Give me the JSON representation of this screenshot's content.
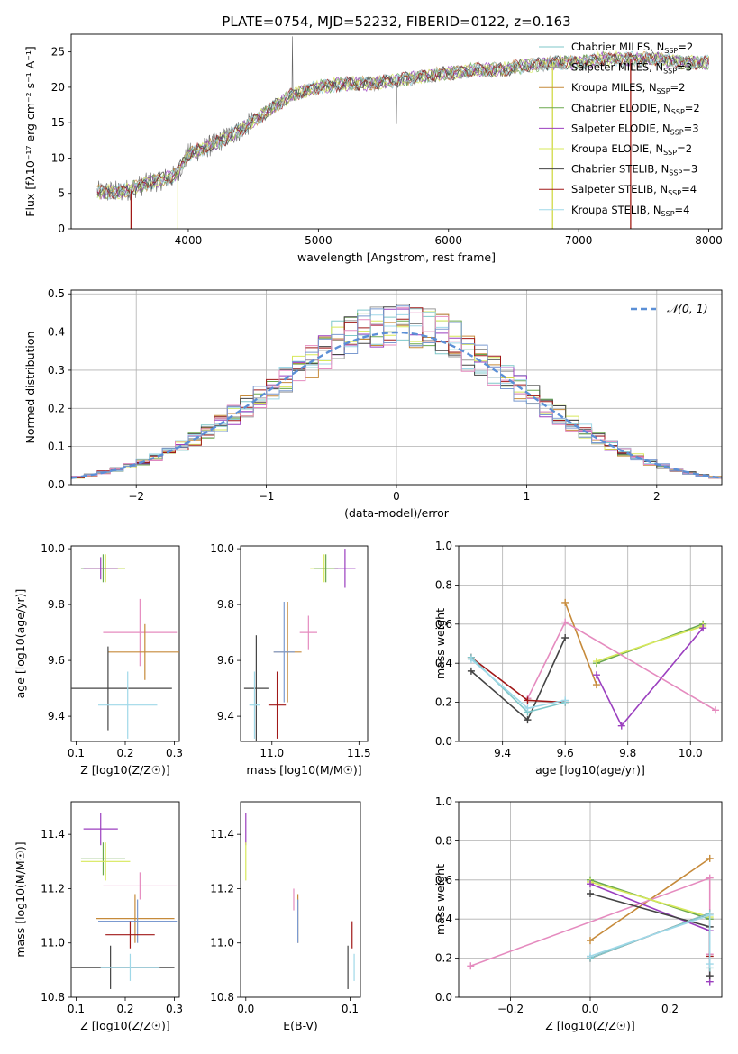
{
  "figure_title": "PLATE=0754, MJD=52232, FIBERID=0122, z=0.163",
  "legend_colors": [
    "#7fc7c9",
    "#9a9a9a",
    "#c68a3a",
    "#6aa84f",
    "#9b3fbf",
    "#d7e85a",
    "#444444",
    "#a01818",
    "#9fd8e8"
  ],
  "chart_data": [
    {
      "id": "spectrum",
      "type": "line",
      "title": "PLATE=0754, MJD=52232, FIBERID=0122, z=0.163",
      "xlabel": "wavelength [Angstrom, rest frame]",
      "ylabel": "Flux [fλ10⁻¹⁷ erg cm⁻² s⁻¹ A⁻¹]",
      "xlim": [
        3100,
        8100
      ],
      "ylim": [
        0,
        27.5
      ],
      "xticks": [
        4000,
        5000,
        6000,
        7000,
        8000
      ],
      "yticks": [
        0,
        5,
        10,
        15,
        20,
        25
      ],
      "grid": false,
      "legend_placement": "upper right",
      "series": [
        {
          "name": "Chabrier MILES, N_SSP=2",
          "label_main": "Chabrier MILES, N",
          "label_sub": "SSP",
          "label_end": "=2",
          "color": "#7fc7c9"
        },
        {
          "name": "Salpeter MILES, N_SSP=3",
          "label_main": "Salpeter MILES, N",
          "label_sub": "SSP",
          "label_end": "=3",
          "color": "#9a9a9a"
        },
        {
          "name": "Kroupa MILES, N_SSP=2",
          "label_main": "Kroupa MILES, N",
          "label_sub": "SSP",
          "label_end": "=2",
          "color": "#c68a3a"
        },
        {
          "name": "Chabrier ELODIE, N_SSP=2",
          "label_main": "Chabrier ELODIE, N",
          "label_sub": "SSP",
          "label_end": "=2",
          "color": "#6aa84f"
        },
        {
          "name": "Salpeter ELODIE, N_SSP=3",
          "label_main": "Salpeter ELODIE, N",
          "label_sub": "SSP",
          "label_end": "=3",
          "color": "#9b3fbf"
        },
        {
          "name": "Kroupa ELODIE, N_SSP=2",
          "label_main": "Kroupa ELODIE, N",
          "label_sub": "SSP",
          "label_end": "=2",
          "color": "#d7e85a"
        },
        {
          "name": "Chabrier STELIB, N_SSP=3",
          "label_main": "Chabrier STELIB, N",
          "label_sub": "SSP",
          "label_end": "=3",
          "color": "#444444"
        },
        {
          "name": "Salpeter STELIB, N_SSP=4",
          "label_main": "Salpeter STELIB, N",
          "label_sub": "SSP",
          "label_end": "=4",
          "color": "#a01818"
        },
        {
          "name": "Kroupa STELIB, N_SSP=4",
          "label_main": "Kroupa STELIB, N",
          "label_sub": "SSP",
          "label_end": "=4",
          "color": "#9fd8e8"
        }
      ],
      "data_trend": {
        "x": [
          3300,
          3500,
          3700,
          3900,
          4000,
          4200,
          4400,
          4600,
          4800,
          5000,
          5200,
          5400,
          5600,
          5800,
          6000,
          6200,
          6400,
          6600,
          6800,
          7000,
          7200,
          7400,
          7600,
          7800,
          8000
        ],
        "y": [
          5.2,
          5.3,
          6.5,
          7.5,
          10.5,
          12,
          14,
          16.5,
          19,
          20,
          20.5,
          20.5,
          21,
          21.5,
          22,
          22.5,
          22.5,
          23,
          23.5,
          23.5,
          24,
          24,
          24,
          23.5,
          23.5
        ]
      }
    },
    {
      "id": "residuals",
      "type": "step-histogram",
      "xlabel": "(data-model)/error",
      "ylabel": "Normed distribution",
      "xlim": [
        -2.5,
        2.5
      ],
      "ylim": [
        0,
        0.51
      ],
      "xticks": [
        -2,
        -1,
        0,
        1,
        2
      ],
      "yticks": [
        0.0,
        0.1,
        0.2,
        0.3,
        0.4,
        0.5
      ],
      "grid": true,
      "legend_placement": "upper right",
      "reference_curve": {
        "name": "N(0,1)",
        "label_text": "𝒩(0, 1)",
        "style": "dashed",
        "color": "#5b8fd6"
      }
    },
    {
      "id": "age_vs_Z",
      "type": "errorbar",
      "xlabel": "Z [log10(Z/Z☉)]",
      "ylabel": "age  [log10(age/yr)]",
      "xlim": [
        0.09,
        0.31
      ],
      "ylim": [
        9.31,
        10.01
      ],
      "xticks": [
        0.1,
        0.2,
        0.3
      ],
      "yticks": [
        9.4,
        9.6,
        9.8,
        10.0
      ],
      "points": [
        {
          "x": 0.155,
          "xerr": 0.045,
          "y": 9.93,
          "yerr": 0.05,
          "color": "#6aa84f"
        },
        {
          "x": 0.16,
          "xerr": 0.04,
          "y": 9.93,
          "yerr": 0.05,
          "color": "#d7e85a"
        },
        {
          "x": 0.15,
          "xerr": 0.035,
          "y": 9.93,
          "yerr": 0.04,
          "color": "#9b3fbf"
        },
        {
          "x": 0.23,
          "xerr": 0.075,
          "y": 9.7,
          "yerr": 0.12,
          "color": "#e58bbf"
        },
        {
          "x": 0.24,
          "xerr": 0.075,
          "y": 9.63,
          "yerr": 0.1,
          "color": "#c68a3a"
        },
        {
          "x": 0.165,
          "xerr": 0.13,
          "y": 9.5,
          "yerr": 0.15,
          "color": "#444444"
        },
        {
          "x": 0.205,
          "xerr": 0.06,
          "y": 9.44,
          "yerr": 0.12,
          "color": "#9fd8e8"
        }
      ]
    },
    {
      "id": "age_vs_mass",
      "type": "errorbar",
      "xlabel": "mass [log10(M/M☉)]",
      "xlim": [
        10.82,
        11.55
      ],
      "ylim": [
        9.31,
        10.01
      ],
      "xticks": [
        11.0,
        11.5
      ],
      "yticks": [
        9.4,
        9.6,
        9.8,
        10.0
      ],
      "points": [
        {
          "x": 11.3,
          "xerr": 0.08,
          "y": 9.93,
          "yerr": 0.05,
          "color": "#d7e85a"
        },
        {
          "x": 11.31,
          "xerr": 0.07,
          "y": 9.93,
          "yerr": 0.05,
          "color": "#6aa84f"
        },
        {
          "x": 11.42,
          "xerr": 0.06,
          "y": 9.93,
          "yerr": 0.07,
          "color": "#9b3fbf"
        },
        {
          "x": 11.21,
          "xerr": 0.05,
          "y": 9.7,
          "yerr": 0.06,
          "color": "#e58bbf"
        },
        {
          "x": 11.09,
          "xerr": 0.08,
          "y": 9.63,
          "yerr": 0.18,
          "color": "#c68a3a"
        },
        {
          "x": 11.07,
          "xerr": 0.06,
          "y": 9.63,
          "yerr": 0.18,
          "color": "#7b9ad0"
        },
        {
          "x": 10.91,
          "xerr": 0.07,
          "y": 9.5,
          "yerr": 0.19,
          "color": "#444444"
        },
        {
          "x": 11.03,
          "xerr": 0.05,
          "y": 9.44,
          "yerr": 0.12,
          "color": "#a01818"
        },
        {
          "x": 10.9,
          "xerr": 0.03,
          "y": 9.44,
          "yerr": 0.12,
          "color": "#9fd8e8"
        }
      ]
    },
    {
      "id": "weight_vs_age",
      "type": "line",
      "xlabel": "age  [log10(age/yr)]",
      "ylabel": "mass weight",
      "xlim": [
        9.26,
        10.1
      ],
      "ylim": [
        0,
        1.0
      ],
      "xticks": [
        9.4,
        9.6,
        9.8,
        10.0
      ],
      "yticks": [
        0.0,
        0.2,
        0.4,
        0.6,
        0.8,
        1.0
      ],
      "grid": true,
      "series": [
        {
          "color": "#6aa84f",
          "x": [
            9.7,
            10.04
          ],
          "y": [
            0.4,
            0.6
          ]
        },
        {
          "color": "#d7e85a",
          "x": [
            9.7,
            10.04
          ],
          "y": [
            0.41,
            0.59
          ]
        },
        {
          "color": "#c68a3a",
          "x": [
            9.6,
            9.7
          ],
          "y": [
            0.71,
            0.29
          ]
        },
        {
          "color": "#e58bbf",
          "x": [
            9.48,
            9.6,
            10.08
          ],
          "y": [
            0.22,
            0.61,
            0.16
          ]
        },
        {
          "color": "#9b3fbf",
          "x": [
            9.7,
            9.78,
            10.04
          ],
          "y": [
            0.34,
            0.08,
            0.58
          ]
        },
        {
          "color": "#444444",
          "x": [
            9.3,
            9.48,
            9.6
          ],
          "y": [
            0.36,
            0.11,
            0.53
          ]
        },
        {
          "color": "#a01818",
          "x": [
            9.3,
            9.48,
            9.6
          ],
          "y": [
            0.43,
            0.21,
            0.2
          ]
        },
        {
          "color": "#7fc7c9",
          "x": [
            9.3,
            9.48,
            9.6
          ],
          "y": [
            0.43,
            0.15,
            0.2
          ]
        },
        {
          "color": "#9fd8e8",
          "x": [
            9.3,
            9.48,
            9.6
          ],
          "y": [
            0.42,
            0.17,
            0.21
          ]
        }
      ]
    },
    {
      "id": "mass_vs_Z",
      "type": "errorbar",
      "xlabel": "Z [log10(Z/Z☉)]",
      "ylabel": "mass [log10(M/M☉)]",
      "xlim": [
        0.09,
        0.31
      ],
      "ylim": [
        10.8,
        11.52
      ],
      "xticks": [
        0.1,
        0.2,
        0.3
      ],
      "yticks": [
        10.8,
        11.0,
        11.2,
        11.4
      ],
      "points": [
        {
          "x": 0.15,
          "xerr": 0.035,
          "y": 11.42,
          "yerr": 0.06,
          "color": "#9b3fbf"
        },
        {
          "x": 0.155,
          "xerr": 0.045,
          "y": 11.31,
          "yerr": 0.06,
          "color": "#6aa84f"
        },
        {
          "x": 0.16,
          "xerr": 0.05,
          "y": 11.3,
          "yerr": 0.07,
          "color": "#d7e85a"
        },
        {
          "x": 0.23,
          "xerr": 0.075,
          "y": 11.21,
          "yerr": 0.05,
          "color": "#e58bbf"
        },
        {
          "x": 0.22,
          "xerr": 0.08,
          "y": 11.09,
          "yerr": 0.09,
          "color": "#c68a3a"
        },
        {
          "x": 0.225,
          "xerr": 0.08,
          "y": 11.08,
          "yerr": 0.08,
          "color": "#7b9ad0"
        },
        {
          "x": 0.21,
          "xerr": 0.05,
          "y": 11.03,
          "yerr": 0.05,
          "color": "#a01818"
        },
        {
          "x": 0.17,
          "xerr": 0.13,
          "y": 10.91,
          "yerr": 0.08,
          "color": "#444444"
        },
        {
          "x": 0.21,
          "xerr": 0.06,
          "y": 10.91,
          "yerr": 0.05,
          "color": "#9fd8e8"
        }
      ]
    },
    {
      "id": "mass_vs_EBV",
      "type": "errorbar",
      "xlabel": "E(B-V)",
      "xlim": [
        -0.005,
        0.11
      ],
      "ylim": [
        10.8,
        11.52
      ],
      "xticks": [
        0.0,
        0.1
      ],
      "yticks": [
        10.8,
        11.0,
        11.2,
        11.4
      ],
      "points": [
        {
          "x": 0.0,
          "xerr": 0,
          "y": 11.42,
          "yerr": 0.06,
          "color": "#9b3fbf"
        },
        {
          "x": 0.0,
          "xerr": 0,
          "y": 11.3,
          "yerr": 0.07,
          "color": "#d7e85a"
        },
        {
          "x": 0.046,
          "xerr": 0,
          "y": 11.16,
          "yerr": 0.04,
          "color": "#e58bbf"
        },
        {
          "x": 0.05,
          "xerr": 0,
          "y": 11.09,
          "yerr": 0.09,
          "color": "#c68a3a"
        },
        {
          "x": 0.05,
          "xerr": 0,
          "y": 11.08,
          "yerr": 0.08,
          "color": "#7b9ad0"
        },
        {
          "x": 0.102,
          "xerr": 0,
          "y": 11.03,
          "yerr": 0.05,
          "color": "#a01818"
        },
        {
          "x": 0.098,
          "xerr": 0,
          "y": 10.91,
          "yerr": 0.08,
          "color": "#444444"
        },
        {
          "x": 0.104,
          "xerr": 0,
          "y": 10.91,
          "yerr": 0.05,
          "color": "#9fd8e8"
        }
      ]
    },
    {
      "id": "weight_vs_Z",
      "type": "line",
      "xlabel": "Z [log10(Z/Z☉)]",
      "ylabel": "mass weight",
      "xlim": [
        -0.33,
        0.33
      ],
      "ylim": [
        0,
        1.0
      ],
      "xticks": [
        -0.2,
        0.0,
        0.2
      ],
      "yticks": [
        0.0,
        0.2,
        0.4,
        0.6,
        0.8,
        1.0
      ],
      "grid": true,
      "series": [
        {
          "color": "#c68a3a",
          "x": [
            0.0,
            0.3
          ],
          "y": [
            0.29,
            0.71
          ]
        },
        {
          "color": "#e58bbf",
          "x": [
            -0.3,
            0.3,
            0.3
          ],
          "y": [
            0.16,
            0.61,
            0.22
          ]
        },
        {
          "color": "#6aa84f",
          "x": [
            0.0,
            0.3
          ],
          "y": [
            0.6,
            0.4
          ]
        },
        {
          "color": "#d7e85a",
          "x": [
            0.0,
            0.3
          ],
          "y": [
            0.59,
            0.41
          ]
        },
        {
          "color": "#9b3fbf",
          "x": [
            0.0,
            0.3,
            0.3
          ],
          "y": [
            0.58,
            0.34,
            0.08
          ]
        },
        {
          "color": "#444444",
          "x": [
            0.0,
            0.3,
            0.3
          ],
          "y": [
            0.53,
            0.36,
            0.11
          ]
        },
        {
          "color": "#a01818",
          "x": [
            0.0,
            0.3,
            0.3
          ],
          "y": [
            0.2,
            0.43,
            0.21
          ]
        },
        {
          "color": "#7fc7c9",
          "x": [
            0.0,
            0.3,
            0.3
          ],
          "y": [
            0.2,
            0.43,
            0.15
          ]
        },
        {
          "color": "#9fd8e8",
          "x": [
            0.0,
            0.3,
            0.3
          ],
          "y": [
            0.21,
            0.42,
            0.17
          ]
        }
      ]
    }
  ]
}
